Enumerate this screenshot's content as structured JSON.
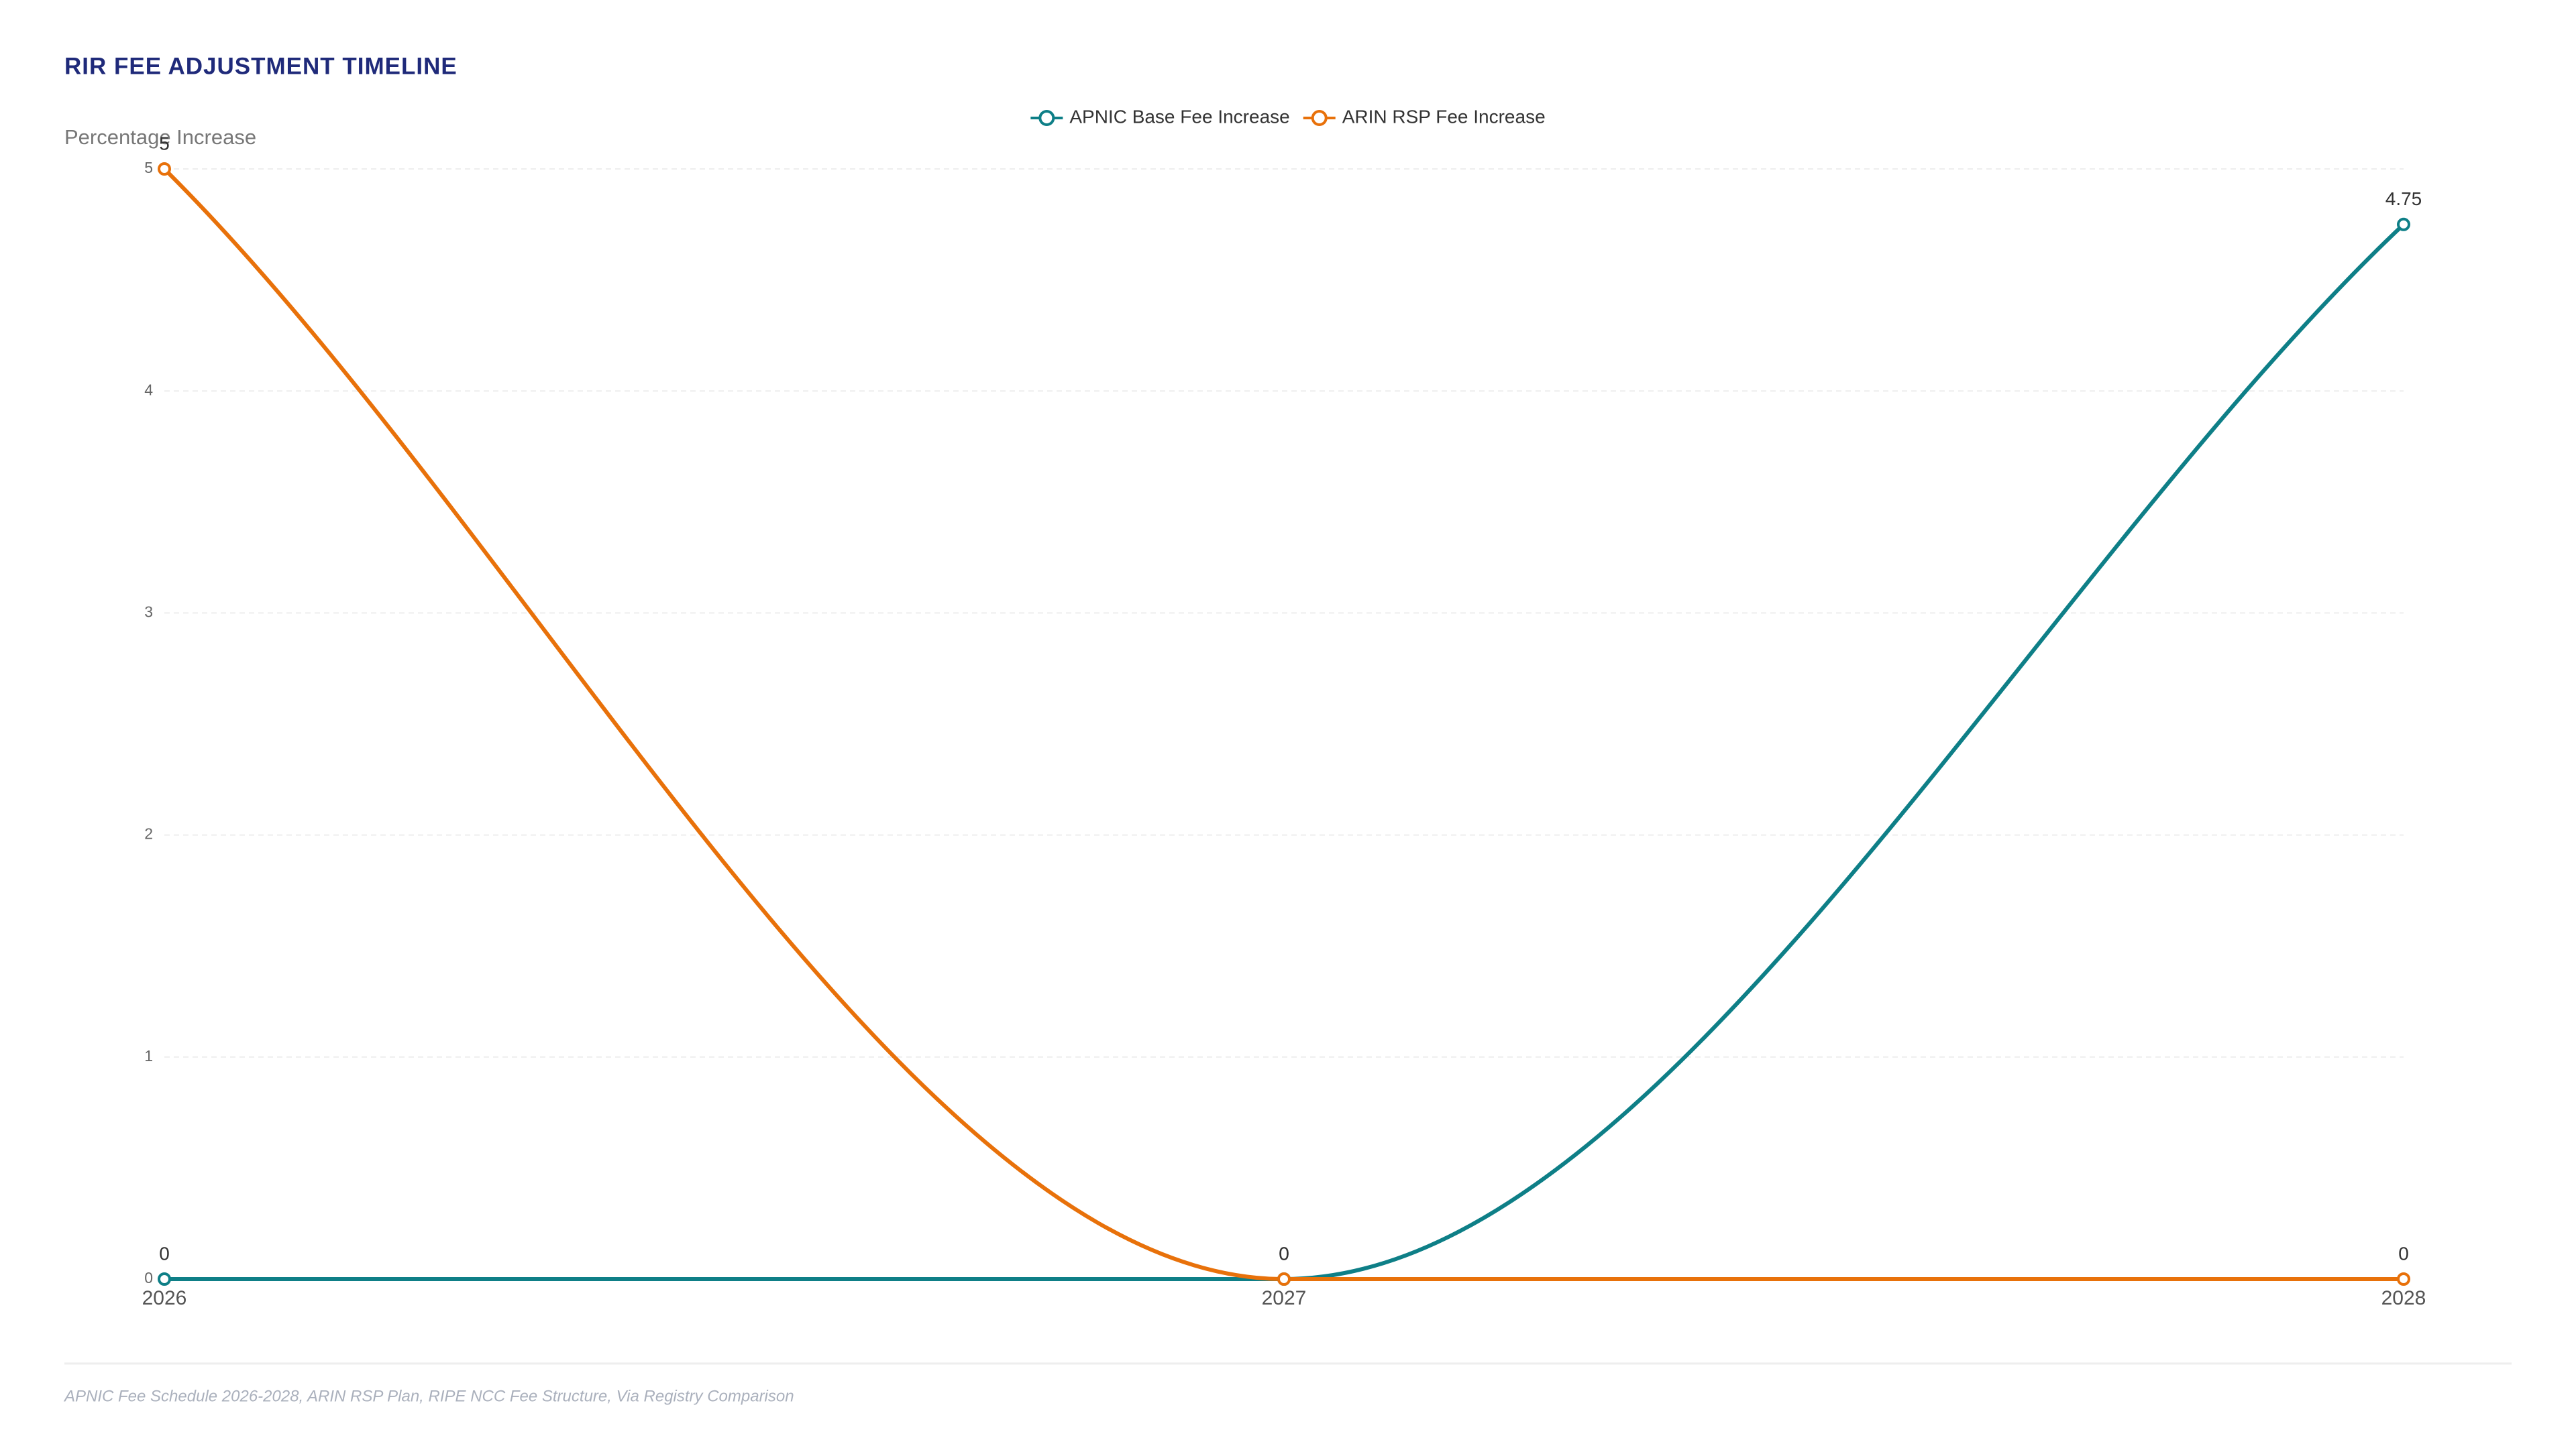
{
  "chart_data": {
    "type": "line",
    "title": "RIR FEE ADJUSTMENT TIMELINE",
    "y_label": "Percentage Increase",
    "categories": [
      "2026",
      "2027",
      "2028"
    ],
    "series": [
      {
        "name": "APNIC Base Fee Increase",
        "color": "#0e7f87",
        "values": [
          0,
          0,
          4.75
        ]
      },
      {
        "name": "ARIN RSP Fee Increase",
        "color": "#e8710a",
        "values": [
          5,
          0,
          0
        ]
      }
    ],
    "ylim": [
      0,
      5
    ],
    "yticks": [
      0,
      1,
      2,
      3,
      4,
      5
    ],
    "grid": true,
    "smooth": true,
    "data_labels": true,
    "legend": "top",
    "source": "APNIC Fee Schedule 2026-2028, ARIN RSP Plan, RIPE NCC Fee Structure, Via Registry Comparison"
  }
}
